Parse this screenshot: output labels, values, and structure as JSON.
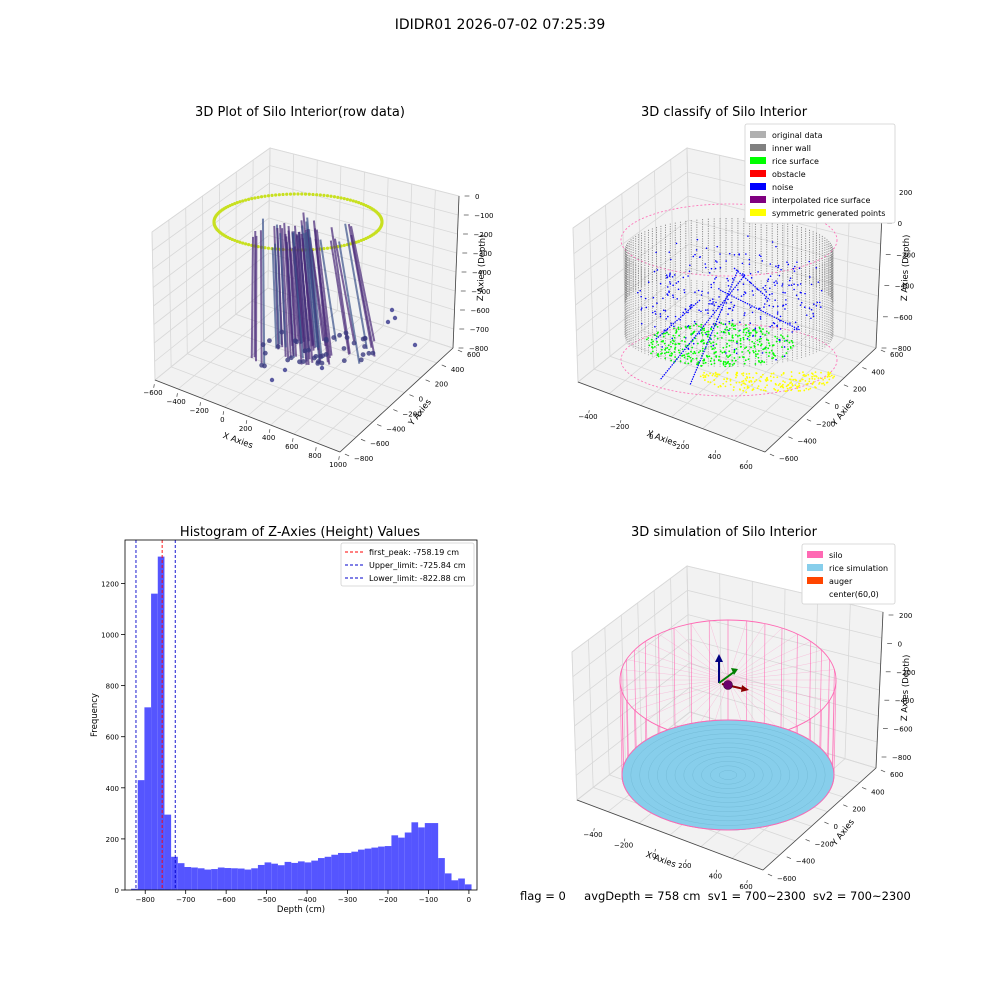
{
  "figure": {
    "suptitle": "IDIDR01 2026-07-02 07:25:39",
    "footer": {
      "flag": "flag = 0",
      "avg_depth": "avgDepth = 758 cm",
      "sv1": "sv1 = 700~2300",
      "sv2": "sv2 = 700~2300"
    }
  },
  "colors": {
    "original_data": "#b0b0b0",
    "inner_wall": "#808080",
    "rice_surface": "#00ff00",
    "obstacle": "#ff0000",
    "noise": "#0000ff",
    "interpolated": "#800080",
    "symmetric": "#ffff00",
    "silo": "#ff69b4",
    "rice_simulation": "#87ceeb",
    "auger": "#ff4500",
    "hist_bar": "#5555ff",
    "peak_line": "#ff0000",
    "limit_line": "#0000cc"
  },
  "chart_data": [
    {
      "type": "scatter",
      "title": "3D Plot of Silo Interior(row data)",
      "xlabel": "X Axies",
      "ylabel": "Y Axies",
      "zlabel": "Z Axies (Depth)",
      "x_ticks": [
        "−600",
        "−400",
        "−200",
        "0",
        "200",
        "400",
        "600",
        "800",
        "1000"
      ],
      "y_ticks": [
        "−800",
        "−600",
        "−400",
        "−200",
        "0",
        "200",
        "400",
        "600"
      ],
      "z_ticks": [
        "0",
        "−100",
        "−200",
        "−300",
        "−400",
        "−500",
        "−600",
        "−700",
        "−800"
      ],
      "xlim": [
        -600,
        1000
      ],
      "ylim": [
        -800,
        600
      ],
      "zlim": [
        -850,
        0
      ],
      "colormap": "viridis"
    },
    {
      "type": "scatter",
      "title": "3D classify of Silo Interior",
      "xlabel": "X Axies",
      "ylabel": "Y Axies",
      "zlabel": "Z Axies (Depth)",
      "x_ticks": [
        "−400",
        "−200",
        "0",
        "200",
        "400",
        "600"
      ],
      "y_ticks": [
        "−600",
        "−400",
        "−200",
        "0",
        "200",
        "400",
        "600"
      ],
      "z_ticks": [
        "200",
        "0",
        "−200",
        "−400",
        "−600",
        "−800"
      ],
      "legend": [
        "original data",
        "inner wall",
        "rice surface",
        "obstacle",
        "noise",
        "interpolated rice surface",
        "symmetric generated points"
      ],
      "legend_position": "top-right"
    },
    {
      "type": "bar",
      "title": "Histogram of Z-Axies (Height) Values",
      "xlabel": "Depth (cm)",
      "ylabel": "Frequency",
      "xlim": [
        -850,
        20
      ],
      "ylim": [
        0,
        1370
      ],
      "x_ticks": [
        -800,
        -700,
        -600,
        -500,
        -400,
        -300,
        -200,
        -100,
        0
      ],
      "x_tick_labels": [
        "−800",
        "−700",
        "−600",
        "−500",
        "−400",
        "−300",
        "−200",
        "−100",
        "0"
      ],
      "y_ticks": [
        0,
        200,
        400,
        600,
        800,
        1000,
        1200
      ],
      "bin_start": -835,
      "bin_width": 16.5,
      "values": [
        5,
        430,
        715,
        1160,
        1305,
        295,
        130,
        105,
        90,
        88,
        85,
        80,
        82,
        88,
        86,
        85,
        84,
        80,
        85,
        98,
        108,
        103,
        97,
        110,
        106,
        112,
        108,
        115,
        125,
        130,
        138,
        145,
        145,
        150,
        158,
        162,
        166,
        170,
        172,
        214,
        205,
        225,
        265,
        245,
        262,
        262,
        125,
        65,
        38,
        45,
        22
      ],
      "vlines": [
        {
          "name": "first_peak: -758.19 cm",
          "x": -758.19,
          "color": "#ff0000"
        },
        {
          "name": "Upper_limit: -725.84 cm",
          "x": -725.84,
          "color": "#0000cc"
        },
        {
          "name": "Lower_limit: -822.88 cm",
          "x": -822.88,
          "color": "#0000cc"
        }
      ],
      "legend_position": "top-right"
    },
    {
      "type": "scatter",
      "title": "3D simulation of Silo Interior",
      "xlabel": "X Axies",
      "ylabel": "Y Axies",
      "zlabel": "Z Axies (Depth)",
      "x_ticks": [
        "−400",
        "−200",
        "0",
        "200",
        "400",
        "600"
      ],
      "y_ticks": [
        "−600",
        "−400",
        "−200",
        "0",
        "200",
        "400",
        "600"
      ],
      "z_ticks": [
        "200",
        "0",
        "−200",
        "−400",
        "−600",
        "−800"
      ],
      "legend": [
        "silo",
        "rice simulation",
        "auger",
        "center(60,0)"
      ],
      "legend_position": "top-right"
    }
  ]
}
